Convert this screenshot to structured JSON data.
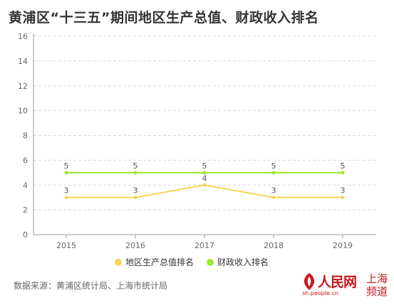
{
  "title": "黄浦区“十三五”期间地区生产总值、财政收入排名",
  "source": "数据来源：黄浦区统计局、上海市统计局",
  "logo": {
    "name": "人民网",
    "url": "sh.people.cn",
    "region_line1": "上海",
    "region_line2": "频道"
  },
  "colors": {
    "gdp_series": "#f5d55a",
    "revenue_series": "#9ee82e",
    "grid": "#d9d9d9",
    "axis": "#999999",
    "brand": "#c8161d"
  },
  "chart_data": {
    "type": "line",
    "title": "黄浦区“十三五”期间地区生产总值、财政收入排名",
    "categories": [
      "2015",
      "2016",
      "2017",
      "2018",
      "2019"
    ],
    "series": [
      {
        "name": "地区生产总值排名",
        "values": [
          3,
          3,
          4,
          3,
          3
        ],
        "color": "#f5d55a"
      },
      {
        "name": "财政收入排名",
        "values": [
          5,
          5,
          5,
          5,
          5
        ],
        "color": "#9ee82e"
      }
    ],
    "yticks": [
      0,
      2,
      4,
      6,
      8,
      10,
      12,
      14,
      16
    ],
    "ylim": [
      0,
      16
    ],
    "grid": "horizontal-dashed",
    "legend_position": "bottom-center",
    "data_labels": true
  }
}
